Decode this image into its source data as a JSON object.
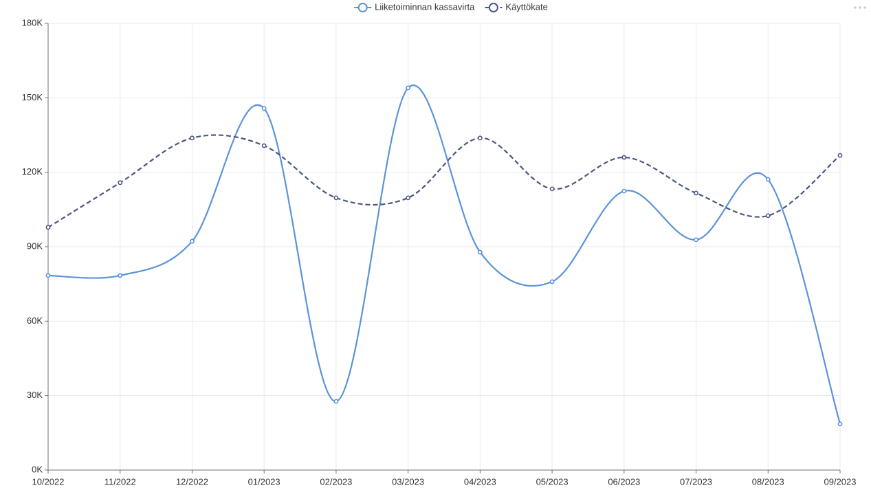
{
  "chart_data": {
    "type": "line",
    "categories": [
      "10/2022",
      "11/2022",
      "12/2022",
      "01/2023",
      "02/2023",
      "03/2023",
      "04/2023",
      "05/2023",
      "06/2023",
      "07/2023",
      "08/2023",
      "09/2023"
    ],
    "series": [
      {
        "name": "Liiketoiminnan kassavirta",
        "color": "#5b93d9",
        "line_style": "solid",
        "values": [
          78400,
          78400,
          92200,
          145700,
          27700,
          154000,
          87800,
          75900,
          112400,
          92800,
          117100,
          18600
        ]
      },
      {
        "name": "Käyttökate",
        "color": "#4a5680",
        "line_style": "dashed",
        "values": [
          97800,
          115800,
          133800,
          130700,
          109700,
          109700,
          133800,
          113300,
          126000,
          111600,
          102500,
          126800
        ]
      }
    ],
    "ylim": [
      0,
      180000
    ],
    "yticks": [
      {
        "value": 0,
        "label": "0K"
      },
      {
        "value": 30000,
        "label": "30K"
      },
      {
        "value": 60000,
        "label": "60K"
      },
      {
        "value": 90000,
        "label": "90K"
      },
      {
        "value": 120000,
        "label": "120K"
      },
      {
        "value": 150000,
        "label": "150K"
      },
      {
        "value": 180000,
        "label": "180K"
      }
    ],
    "grid": true,
    "smooth": true,
    "legend": "top"
  }
}
